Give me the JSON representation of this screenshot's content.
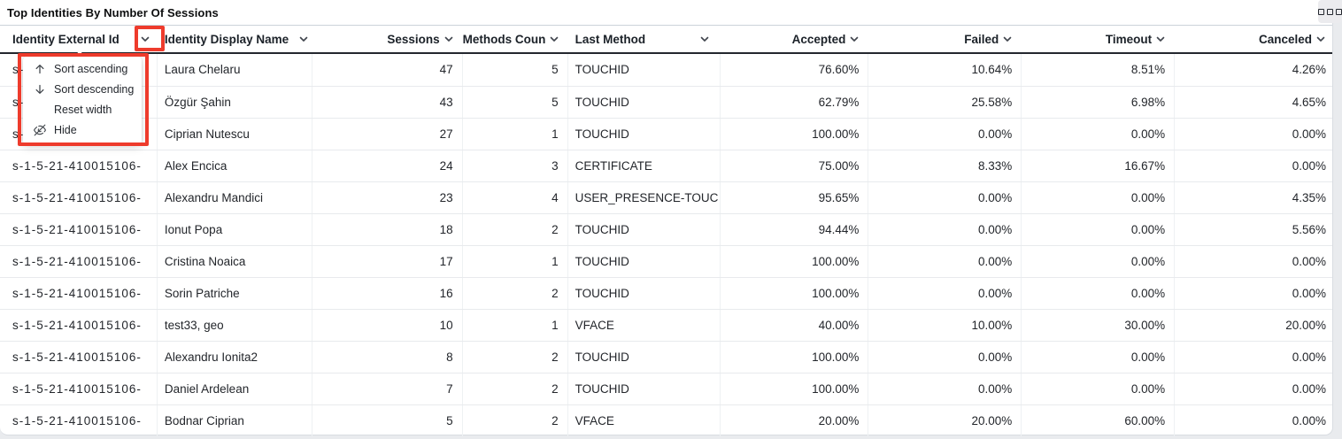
{
  "panel": {
    "title": "Top Identities By Number Of Sessions"
  },
  "annotation": {
    "color": "#ee3b2c"
  },
  "context_menu": {
    "items": [
      {
        "label": "Sort ascending",
        "icon": "arrow-up-icon"
      },
      {
        "label": "Sort descending",
        "icon": "arrow-down-icon"
      },
      {
        "label": "Reset width",
        "icon": ""
      },
      {
        "label": "Hide",
        "icon": "eye-off-icon"
      }
    ]
  },
  "table": {
    "columns": [
      "Identity External Id",
      "Identity Display Name",
      "Sessions",
      "Methods Count",
      "Last Method",
      "Accepted",
      "Failed",
      "Timeout",
      "Canceled"
    ],
    "rows": [
      [
        "s-1-5-21-410015106-",
        "Laura Chelaru",
        "47",
        "5",
        "TOUCHID",
        "76.60%",
        "10.64%",
        "8.51%",
        "4.26%"
      ],
      [
        "s-1-5-21-410015106-",
        "Özgür Şahin",
        "43",
        "5",
        "TOUCHID",
        "62.79%",
        "25.58%",
        "6.98%",
        "4.65%"
      ],
      [
        "s-1-5-21-410015106-",
        "Ciprian Nutescu",
        "27",
        "1",
        "TOUCHID",
        "100.00%",
        "0.00%",
        "0.00%",
        "0.00%"
      ],
      [
        "s-1-5-21-410015106-",
        "Alex Encica",
        "24",
        "3",
        "CERTIFICATE",
        "75.00%",
        "8.33%",
        "16.67%",
        "0.00%"
      ],
      [
        "s-1-5-21-410015106-",
        "Alexandru Mandici",
        "23",
        "4",
        "USER_PRESENCE-TOUC",
        "95.65%",
        "0.00%",
        "0.00%",
        "4.35%"
      ],
      [
        "s-1-5-21-410015106-",
        "Ionut Popa",
        "18",
        "2",
        "TOUCHID",
        "94.44%",
        "0.00%",
        "0.00%",
        "5.56%"
      ],
      [
        "s-1-5-21-410015106-",
        "Cristina Noaica",
        "17",
        "1",
        "TOUCHID",
        "100.00%",
        "0.00%",
        "0.00%",
        "0.00%"
      ],
      [
        "s-1-5-21-410015106-",
        "Sorin Patriche",
        "16",
        "2",
        "TOUCHID",
        "100.00%",
        "0.00%",
        "0.00%",
        "0.00%"
      ],
      [
        "s-1-5-21-410015106-",
        "test33, geo",
        "10",
        "1",
        "VFACE",
        "40.00%",
        "10.00%",
        "30.00%",
        "20.00%"
      ],
      [
        "s-1-5-21-410015106-",
        "Alexandru Ionita2",
        "8",
        "2",
        "TOUCHID",
        "100.00%",
        "0.00%",
        "0.00%",
        "0.00%"
      ],
      [
        "s-1-5-21-410015106-",
        "Daniel Ardelean",
        "7",
        "2",
        "TOUCHID",
        "100.00%",
        "0.00%",
        "0.00%",
        "0.00%"
      ],
      [
        "s-1-5-21-410015106-",
        "Bodnar Ciprian",
        "5",
        "2",
        "VFACE",
        "20.00%",
        "20.00%",
        "60.00%",
        "0.00%"
      ]
    ]
  }
}
